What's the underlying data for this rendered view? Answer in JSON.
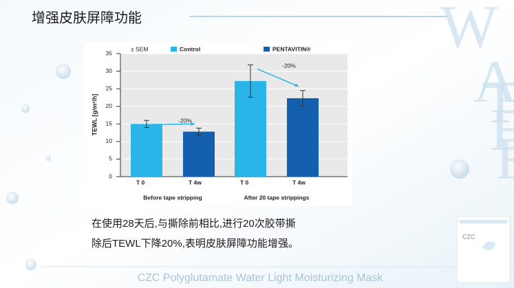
{
  "slide": {
    "title": "增强皮肤屏障功能",
    "body_lines": [
      "在使用28天后,与撕除前相比,进行20次胶带撕",
      "除后TEWL下降20%,表明皮肤屏障功能增强。"
    ],
    "footer": "CZC Polyglutamate Water Light Moisturizing Mask",
    "decor_letters": [
      "W",
      "A",
      "T",
      "E",
      "R"
    ],
    "product_label": "CZC"
  },
  "chart_data": {
    "type": "bar",
    "y_label": "TEWL [g/m²/h]",
    "legend_note": "± SEM",
    "categories": [
      "Before tape stripping",
      "After 20 tape strippings"
    ],
    "series": [
      {
        "name": "Control",
        "color": "#29b5e8",
        "x_label": "T 0",
        "values": [
          15,
          27.2
        ],
        "errors": [
          1,
          4.6
        ]
      },
      {
        "name": "PENTAVITIN®",
        "color": "#1560ae",
        "x_label": "T 4w",
        "values": [
          12.8,
          22.3
        ],
        "errors": [
          1,
          2.2
        ]
      }
    ],
    "annotations": [
      "-20%",
      "-20%"
    ],
    "ylim": [
      0,
      35
    ],
    "yticks": [
      0,
      5,
      10,
      15,
      20,
      25,
      30,
      35
    ],
    "grid": true
  }
}
